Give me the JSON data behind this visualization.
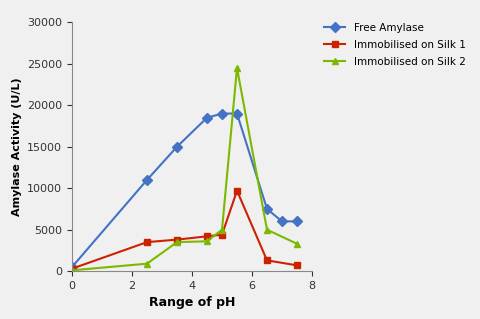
{
  "xlabel": "Range of pH",
  "ylabel": "Amylase Activity (U/L)",
  "ylim": [
    0,
    30000
  ],
  "xlim": [
    0,
    8
  ],
  "yticks": [
    0,
    5000,
    10000,
    15000,
    20000,
    25000,
    30000
  ],
  "xticks": [
    0,
    2,
    4,
    6,
    8
  ],
  "free_amylase": {
    "x": [
      0,
      2.5,
      3.5,
      4.5,
      5,
      5.5,
      6.5,
      7,
      7.5
    ],
    "y": [
      500,
      11000,
      15000,
      18500,
      19000,
      19000,
      7500,
      6000,
      6000
    ],
    "color": "#4472C4",
    "marker": "D",
    "label": "Free Amylase"
  },
  "silk1": {
    "x": [
      0,
      2.5,
      3.5,
      4.5,
      5,
      5.5,
      6.5,
      7.5
    ],
    "y": [
      300,
      3500,
      3800,
      4200,
      4400,
      9700,
      1300,
      700
    ],
    "color": "#CC2200",
    "marker": "s",
    "label": "Immobilised on Silk 1"
  },
  "silk2": {
    "x": [
      0,
      2.5,
      3.5,
      4.5,
      5,
      5.5,
      6.5,
      7.5
    ],
    "y": [
      100,
      900,
      3500,
      3600,
      5000,
      24500,
      5000,
      3300
    ],
    "color": "#7CB800",
    "marker": "^",
    "label": "Immobilised on Silk 2"
  },
  "bg_color": "#f0f0f0"
}
